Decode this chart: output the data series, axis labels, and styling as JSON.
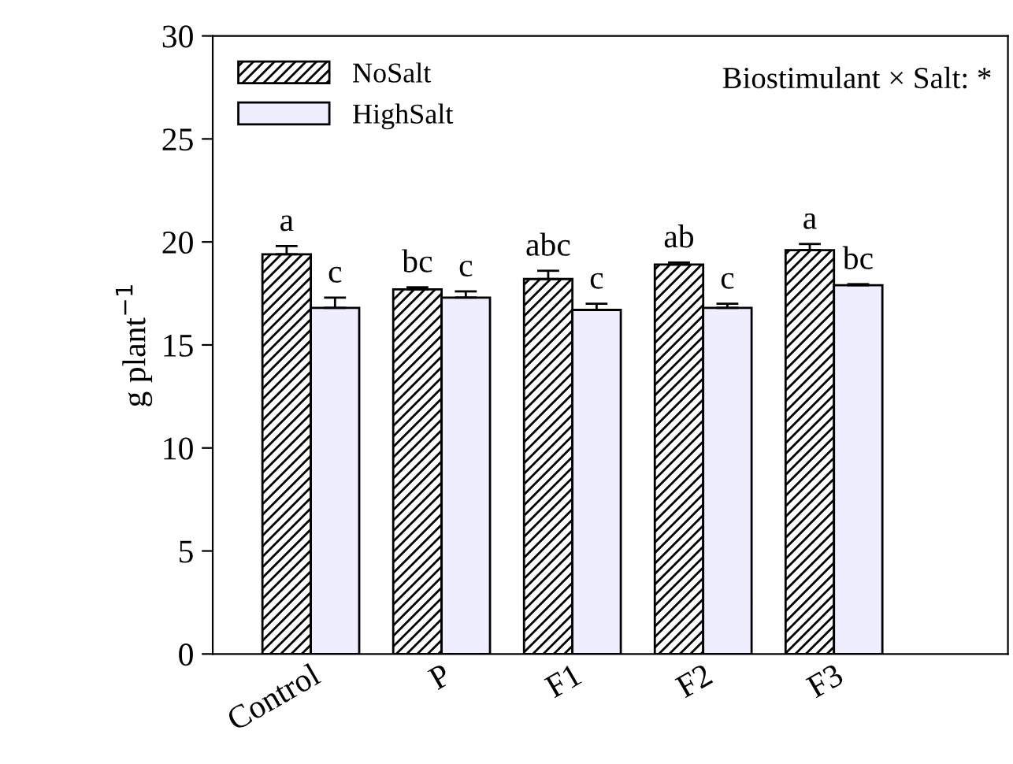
{
  "chart_data": {
    "type": "bar",
    "ylabel": "g plant$^{−1}$",
    "categories": [
      "Control",
      "P",
      "F1",
      "F2",
      "F3"
    ],
    "series": [
      {
        "name": "NoSalt",
        "color": "#000000",
        "values": [
          19.4,
          17.7,
          18.2,
          18.9,
          19.6
        ],
        "errors": [
          [
            19.4,
            19.8
          ],
          [
            17.7,
            17.8
          ],
          [
            18.2,
            18.6
          ],
          [
            18.9,
            19.0
          ],
          [
            19.6,
            19.9
          ]
        ],
        "value_labels": [
          "a",
          "bc",
          "abc",
          "ab",
          "a"
        ]
      },
      {
        "name": "HighSalt",
        "color": "#eeeeff",
        "values": [
          16.8,
          17.3,
          16.7,
          16.8,
          17.9
        ],
        "errors": [
          [
            16.8,
            17.3
          ],
          [
            17.3,
            17.6
          ],
          [
            16.7,
            17.0
          ],
          [
            16.8,
            17.0
          ],
          [
            17.9,
            17.95
          ]
        ],
        "value_labels": [
          "c",
          "c",
          "c",
          "c",
          "bc"
        ]
      }
    ],
    "ylim": [
      0,
      30
    ],
    "yticks": [
      0,
      5,
      10,
      15,
      20,
      25,
      30
    ],
    "annotations": [
      "Biostimulant × Salt: *"
    ],
    "legend": "top left",
    "grid": false
  }
}
